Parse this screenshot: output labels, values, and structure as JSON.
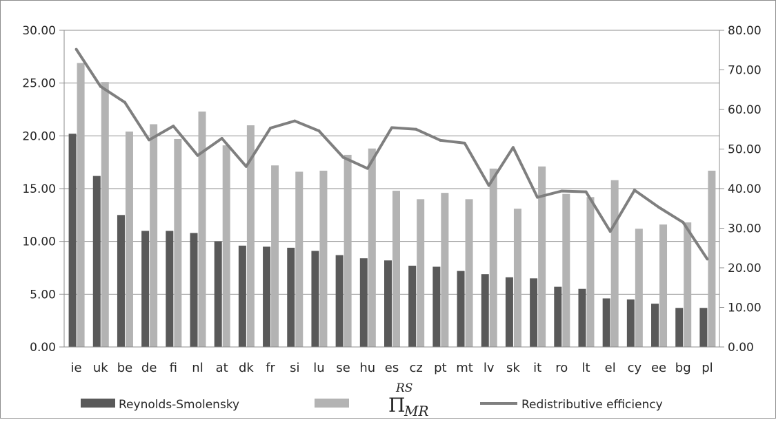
{
  "chart_data": {
    "type": "bar",
    "categories": [
      "ie",
      "uk",
      "be",
      "de",
      "fi",
      "nl",
      "at",
      "dk",
      "fr",
      "si",
      "lu",
      "se",
      "hu",
      "es",
      "cz",
      "pt",
      "mt",
      "lv",
      "sk",
      "it",
      "ro",
      "lt",
      "el",
      "cy",
      "ee",
      "bg",
      "pl"
    ],
    "series": [
      {
        "name": "Reynolds-Smolensky",
        "type": "bar",
        "axis": "left",
        "color": "#595959",
        "values": [
          20.2,
          16.2,
          12.5,
          11.0,
          11.0,
          10.8,
          10.0,
          9.6,
          9.5,
          9.4,
          9.1,
          8.7,
          8.4,
          8.2,
          7.7,
          7.6,
          7.2,
          6.9,
          6.6,
          6.5,
          5.7,
          5.5,
          4.6,
          4.5,
          4.1,
          3.7,
          3.7
        ]
      },
      {
        "name": "Π",
        "type": "bar",
        "axis": "left",
        "color": "#b3b3b3",
        "values": [
          26.9,
          25.1,
          20.4,
          21.1,
          19.7,
          22.3,
          19.1,
          21.0,
          17.2,
          16.6,
          16.7,
          18.2,
          18.8,
          14.8,
          14.0,
          14.6,
          14.0,
          16.9,
          13.1,
          17.1,
          14.5,
          14.2,
          15.8,
          11.2,
          11.6,
          11.8,
          16.7
        ]
      },
      {
        "name": "Redistributive efficiency",
        "type": "line",
        "axis": "right",
        "color": "#7f7f7f",
        "values": [
          75.2,
          65.8,
          61.8,
          52.3,
          55.8,
          48.4,
          52.7,
          45.6,
          55.3,
          57.1,
          54.6,
          47.9,
          45.1,
          55.4,
          55.0,
          52.2,
          51.5,
          40.8,
          50.4,
          37.8,
          39.4,
          39.2,
          29.2,
          39.6,
          35.3,
          31.5,
          22.2
        ]
      }
    ],
    "yaxis_left": {
      "ylim": [
        0,
        30
      ],
      "ticks": [
        "0.00",
        "5.00",
        "10.00",
        "15.00",
        "20.00",
        "25.00",
        "30.00"
      ]
    },
    "yaxis_right": {
      "ylim": [
        0,
        80
      ],
      "ticks": [
        "0.00",
        "10.00",
        "20.00",
        "30.00",
        "40.00",
        "50.00",
        "60.00",
        "70.00",
        "80.00"
      ]
    },
    "grid": "horizontal",
    "legend_position": "bottom",
    "legend": {
      "rs_label": "Reynolds-Smolensky",
      "pi_symbol": "Π",
      "pi_sub": "MR",
      "pi_sup": "RS",
      "re_label": "Redistributive efficiency"
    }
  }
}
